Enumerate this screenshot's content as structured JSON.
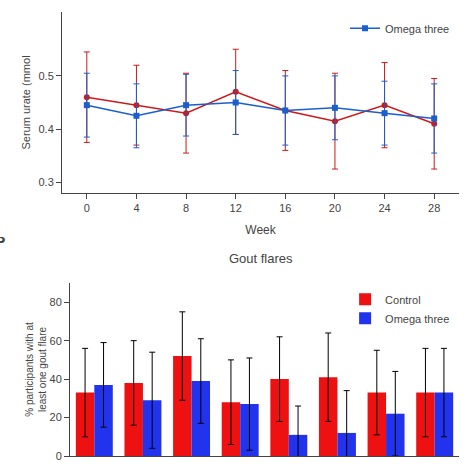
{
  "chart_data": [
    {
      "type": "line",
      "xlabel": "Week",
      "ylabel": "Serum urate (mmol",
      "x": [
        0,
        4,
        8,
        12,
        16,
        20,
        24,
        28
      ],
      "series": [
        {
          "color": "#cc1a1a",
          "marker": "circle",
          "values": [
            0.46,
            0.445,
            0.43,
            0.47,
            0.435,
            0.415,
            0.445,
            0.41
          ],
          "error": [
            0.085,
            0.075,
            0.075,
            0.08,
            0.075,
            0.09,
            0.08,
            0.085
          ]
        },
        {
          "name": "Omega three",
          "color": "#1a5fcc",
          "marker": "square",
          "values": [
            0.445,
            0.425,
            0.445,
            0.45,
            0.435,
            0.44,
            0.43,
            0.42
          ],
          "error": [
            0.06,
            0.06,
            0.058,
            0.06,
            0.065,
            0.06,
            0.06,
            0.065
          ]
        }
      ],
      "xlim": [
        -2,
        30
      ],
      "xticks": [
        0,
        4,
        8,
        12,
        16,
        20,
        24,
        28
      ],
      "ylim": [
        0.28,
        0.62
      ],
      "yticks": [
        0.3,
        0.4,
        0.5
      ],
      "grid": false,
      "legend": "upper right"
    },
    {
      "type": "bar",
      "title": "Gout flares",
      "ylabel": "% participants with at\nleast one gout flare",
      "categories": [
        null,
        null,
        null,
        null,
        null,
        null,
        null,
        null
      ],
      "series": [
        {
          "name": "Control",
          "color": "#ee1111",
          "values": [
            33,
            38,
            52,
            28,
            40,
            41,
            33,
            33
          ],
          "error": [
            23,
            22,
            23,
            22,
            22,
            23,
            22,
            23
          ]
        },
        {
          "name": "Omega three",
          "color": "#2233ee",
          "values": [
            37,
            29,
            39,
            27,
            11,
            12,
            22,
            33
          ],
          "error": [
            22,
            25,
            22,
            24,
            15,
            22,
            22,
            23
          ]
        }
      ],
      "ylim": [
        0,
        90
      ],
      "yticks": [
        0,
        20,
        40,
        60,
        80
      ],
      "grid": false,
      "tick_labels": "y",
      "legend": "upper right",
      "annotations": [
        {
          "text": "B"
        }
      ]
    }
  ]
}
